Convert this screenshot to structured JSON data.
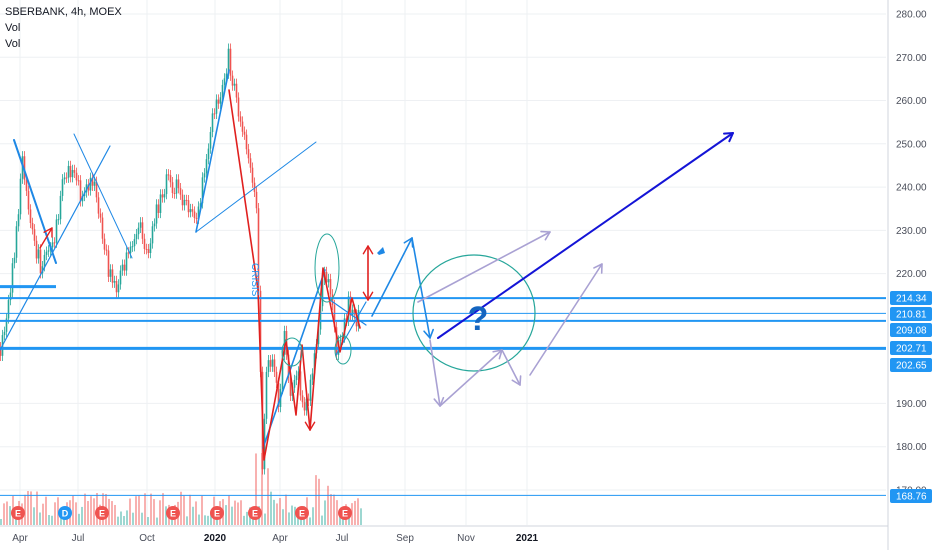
{
  "header": {
    "symbol_line": "SBERBANK, 4h, MOEX",
    "indicator_1": "Vol",
    "indicator_2": "Vol"
  },
  "colors": {
    "up": "#26a69a",
    "down": "#ef5350",
    "level_line": "#2196f3",
    "trend_line": "#1e88e5",
    "projection": "#a9a1d3",
    "target_arrow": "#1414d6",
    "marker": "#ef5350",
    "marker_d": "#2196f3",
    "axis_text": "#4a4e5a"
  },
  "icons": [
    "earnings-marker-icon",
    "dividend-marker-icon",
    "question-mark-icon"
  ],
  "annotations": {
    "event_label": "CRISIS",
    "question_mark": "?"
  },
  "chart_data": {
    "type": "candlestick",
    "title": "SBERBANK, 4h, MOEX",
    "xlabel": "",
    "ylabel": "",
    "ylim": [
      160,
      282
    ],
    "yticks": [
      "280.00",
      "270.00",
      "260.00",
      "250.00",
      "240.00",
      "230.00",
      "220.00",
      "190.00",
      "180.00",
      "170.00"
    ],
    "xticks": [
      {
        "label": "Apr",
        "bold": false
      },
      {
        "label": "Jul",
        "bold": false
      },
      {
        "label": "Oct",
        "bold": false
      },
      {
        "label": "2020",
        "bold": true
      },
      {
        "label": "Apr",
        "bold": false
      },
      {
        "label": "Jul",
        "bold": false
      },
      {
        "label": "Sep",
        "bold": false
      },
      {
        "label": "Nov",
        "bold": false
      },
      {
        "label": "2021",
        "bold": true
      }
    ],
    "price_levels": [
      {
        "label": "214.34",
        "value": 214.34
      },
      {
        "label": "210.81",
        "value": 210.81
      },
      {
        "label": "209.08",
        "value": 209.08
      },
      {
        "label": "202.71",
        "value": 202.71
      },
      {
        "label": "202.65",
        "value": 202.65
      },
      {
        "label": "168.76",
        "value": 168.76
      }
    ],
    "price_path": [
      [
        0,
        203
      ],
      [
        8,
        212
      ],
      [
        16,
        230
      ],
      [
        22,
        246
      ],
      [
        30,
        230
      ],
      [
        40,
        222
      ],
      [
        52,
        226
      ],
      [
        62,
        240
      ],
      [
        72,
        245
      ],
      [
        80,
        238
      ],
      [
        92,
        242
      ],
      [
        100,
        232
      ],
      [
        108,
        221
      ],
      [
        116,
        216
      ],
      [
        124,
        222
      ],
      [
        132,
        227
      ],
      [
        140,
        230
      ],
      [
        148,
        224
      ],
      [
        156,
        234
      ],
      [
        166,
        241
      ],
      [
        176,
        240
      ],
      [
        186,
        236
      ],
      [
        196,
        232
      ],
      [
        204,
        244
      ],
      [
        212,
        256
      ],
      [
        222,
        264
      ],
      [
        228,
        270
      ],
      [
        234,
        262
      ],
      [
        242,
        254
      ],
      [
        250,
        246
      ],
      [
        256,
        236
      ],
      [
        262,
        176
      ],
      [
        266,
        198
      ],
      [
        272,
        200
      ],
      [
        278,
        190
      ],
      [
        284,
        205
      ],
      [
        290,
        192
      ],
      [
        296,
        198
      ],
      [
        304,
        188
      ],
      [
        312,
        196
      ],
      [
        318,
        208
      ],
      [
        324,
        222
      ],
      [
        330,
        215
      ],
      [
        336,
        203
      ],
      [
        342,
        207
      ],
      [
        348,
        213
      ],
      [
        354,
        209
      ],
      [
        360,
        211
      ]
    ],
    "event_markers": [
      {
        "label": "E",
        "x": 18
      },
      {
        "label": "D",
        "x": 65
      },
      {
        "label": "E",
        "x": 102
      },
      {
        "label": "E",
        "x": 173
      },
      {
        "label": "E",
        "x": 217
      },
      {
        "label": "E",
        "x": 255
      },
      {
        "label": "E",
        "x": 302
      },
      {
        "label": "E",
        "x": 345
      }
    ]
  }
}
